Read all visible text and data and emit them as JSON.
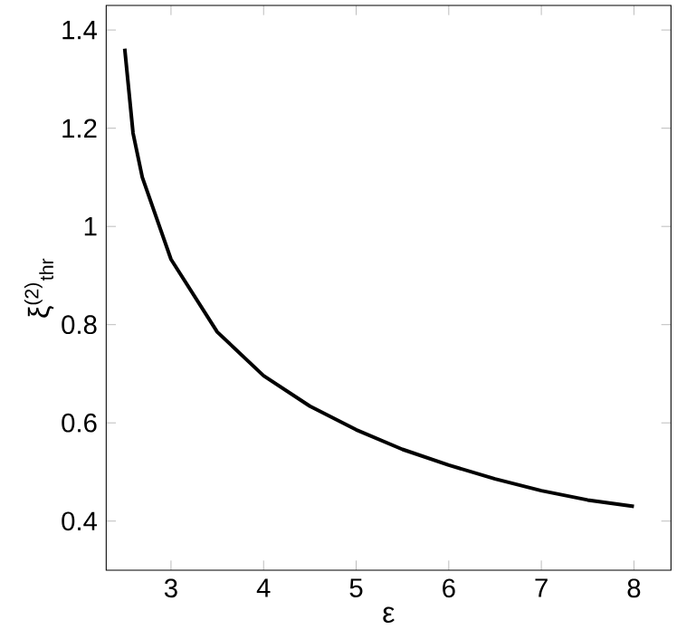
{
  "chart_data": {
    "type": "line",
    "xlabel": "ε",
    "ylabel": "ξ$^{(2)}$$_{thr}$",
    "x": [
      2.5,
      2.59,
      2.69,
      3,
      3.5,
      4,
      4.5,
      5,
      5.5,
      6,
      6.5,
      7,
      7.5,
      8
    ],
    "series": [
      {
        "color": "#000000",
        "values": [
          1.362,
          1.19,
          1.1,
          0.933,
          0.785,
          0.696,
          0.634,
          0.586,
          0.546,
          0.514,
          0.486,
          0.462,
          0.443,
          0.43
        ]
      }
    ],
    "xlim": [
      2.3,
      8.4
    ],
    "ylim": [
      0.3,
      1.45
    ],
    "xticks": [
      3,
      4,
      5,
      6,
      7,
      8
    ],
    "yticks": [
      0.4,
      0.6,
      0.8,
      1,
      1.2,
      1.4
    ],
    "grid": false,
    "marker": "none",
    "line_style": "solid"
  }
}
